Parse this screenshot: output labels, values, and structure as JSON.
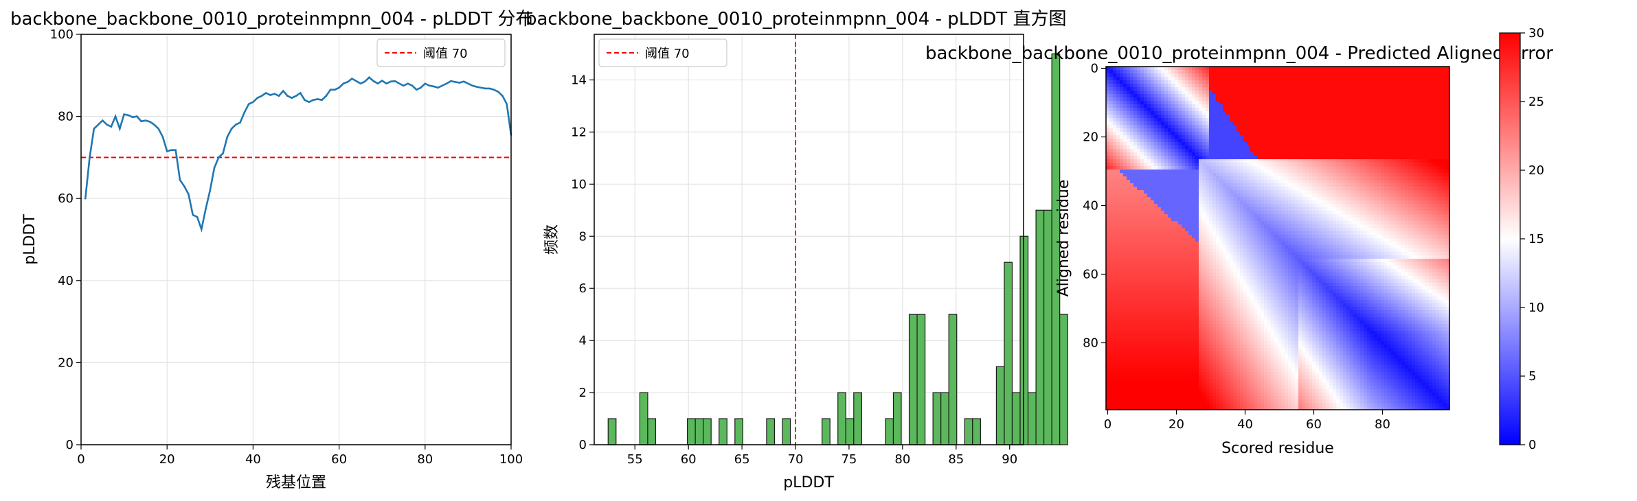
{
  "chart_data": [
    {
      "type": "line",
      "title": "backbone_backbone_0010_proteinmpnn_004 - pLDDT 分布",
      "xlabel": "残基位置",
      "ylabel": "pLDDT",
      "xlim": [
        0,
        100
      ],
      "ylim": [
        0,
        100
      ],
      "xticks": [
        0,
        20,
        40,
        60,
        80,
        100
      ],
      "yticks": [
        0,
        20,
        40,
        60,
        80,
        100
      ],
      "grid": true,
      "legend": {
        "position": "upper-right",
        "entries": [
          "阈值 70"
        ]
      },
      "threshold": {
        "y": 70,
        "label": "阈值 70",
        "color": "#ff0000"
      },
      "series": [
        {
          "color": "#1f77b4",
          "x": [
            1,
            2,
            3,
            4,
            5,
            6,
            7,
            8,
            9,
            10,
            11,
            12,
            13,
            14,
            15,
            16,
            17,
            18,
            19,
            20,
            21,
            22,
            23,
            24,
            25,
            26,
            27,
            28,
            29,
            30,
            31,
            32,
            33,
            34,
            35,
            36,
            37,
            38,
            39,
            40,
            41,
            42,
            43,
            44,
            45,
            46,
            47,
            48,
            49,
            50,
            51,
            52,
            53,
            54,
            55,
            56,
            57,
            58,
            59,
            60,
            61,
            62,
            63,
            64,
            65,
            66,
            67,
            68,
            69,
            70,
            71,
            72,
            73,
            74,
            75,
            76,
            77,
            78,
            79,
            80,
            81,
            82,
            83,
            84,
            85,
            86,
            87,
            88,
            89,
            90,
            91,
            92,
            93,
            94,
            95,
            96,
            97,
            98,
            99,
            100
          ],
          "values": [
            60,
            70,
            77,
            78,
            79,
            78,
            77.5,
            80,
            77,
            80.5,
            80.3,
            79.8,
            80,
            78.8,
            79,
            78.7,
            78,
            77,
            75,
            71.5,
            71.8,
            71.8,
            64.5,
            63,
            61,
            56,
            55.5,
            52.5,
            57.5,
            62,
            67.5,
            70,
            71,
            75,
            77,
            78,
            78.5,
            81,
            83,
            83.5,
            84.5,
            85,
            85.7,
            85.2,
            85.5,
            85,
            86.2,
            85,
            84.5,
            85,
            85.7,
            84,
            83.5,
            84,
            84.2,
            84,
            85,
            86.5,
            86.5,
            87,
            88,
            88.4,
            89.2,
            88.6,
            88,
            88.5,
            89.5,
            88.6,
            88,
            88.7,
            88,
            88.5,
            88.6,
            88,
            87.5,
            88,
            87.5,
            86.5,
            87,
            88,
            87.5,
            87.3,
            87,
            87.5,
            88,
            88.6,
            88.4,
            88.2,
            88.5,
            88,
            87.5,
            87.2,
            87,
            86.8,
            86.8,
            86.5,
            86,
            85,
            83,
            75.5
          ]
        }
      ]
    },
    {
      "type": "bar",
      "title": "backbone_backbone_0010_proteinmpnn_004 - pLDDT 直方图",
      "xlabel": "pLDDT",
      "ylabel": "频数",
      "xlim": [
        51.2,
        91.3
      ],
      "ylim": [
        0,
        15.75
      ],
      "xticks": [
        55,
        60,
        65,
        70,
        75,
        80,
        85,
        90
      ],
      "yticks": [
        0,
        2,
        4,
        6,
        8,
        10,
        12,
        14
      ],
      "grid": true,
      "legend": {
        "position": "upper-left",
        "entries": [
          "阈值 70"
        ]
      },
      "threshold": {
        "x": 70,
        "label": "阈值 70",
        "color": "#ff0000"
      },
      "bar_color": "#5cb85c",
      "bin_start": 52.5,
      "bin_width": 0.74,
      "counts": [
        1,
        0,
        0,
        0,
        2,
        1,
        0,
        0,
        0,
        0,
        1,
        1,
        1,
        0,
        1,
        0,
        1,
        0,
        0,
        0,
        1,
        0,
        1,
        0,
        0,
        0,
        0,
        1,
        0,
        2,
        1,
        2,
        0,
        0,
        0,
        1,
        2,
        0,
        5,
        5,
        0,
        2,
        2,
        5,
        0,
        1,
        1,
        0,
        0,
        3,
        7,
        2,
        8,
        2,
        9,
        9,
        15,
        5
      ]
    },
    {
      "type": "heatmap",
      "title": "backbone_backbone_0010_proteinmpnn_004 - Predicted Aligned Error",
      "xlabel": "Scored residue",
      "ylabel": "Aligned residue",
      "size": 100,
      "xticks": [
        0,
        20,
        40,
        60,
        80
      ],
      "yticks": [
        0,
        20,
        40,
        60,
        80
      ],
      "colormap": "bwr",
      "vmin": 0,
      "vmax": 30,
      "colorbar_ticks": [
        0,
        5,
        10,
        15,
        20,
        25,
        30
      ]
    }
  ]
}
